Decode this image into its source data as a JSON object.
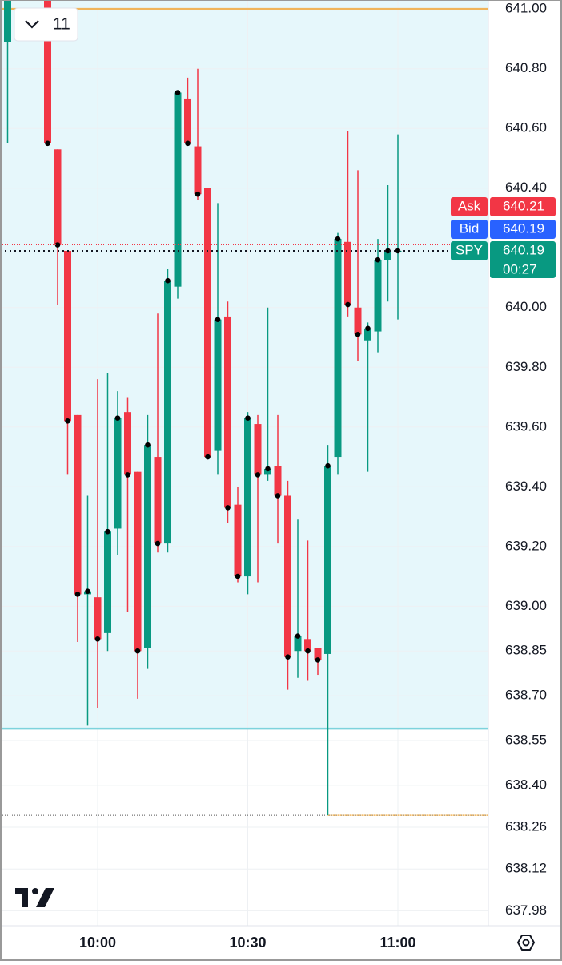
{
  "chart_data": {
    "type": "candlestick",
    "toolbar": {
      "interval": "11"
    },
    "categories": [
      null,
      null,
      null,
      null,
      null,
      null,
      null,
      null,
      null,
      "10:00",
      null,
      null,
      null,
      null,
      null,
      null,
      null,
      null,
      null,
      null,
      null,
      null,
      null,
      null,
      "10:30",
      null,
      null,
      null,
      null,
      null,
      null,
      null,
      null,
      null,
      null,
      null,
      null,
      null,
      null,
      "11:00"
    ],
    "series": {
      "open": [
        640.89,
        null,
        null,
        null,
        641.1,
        640.53,
        640.19,
        639.64,
        639.04,
        639.03,
        638.91,
        639.26,
        639.65,
        639.45,
        638.86,
        639.5,
        639.21,
        640.07,
        640.7,
        640.54,
        640.4,
        639.52,
        639.97,
        639.34,
        639.1,
        639.61,
        639.44,
        639.47,
        639.37,
        638.85,
        638.89,
        638.86,
        638.84,
        639.5,
        640.22,
        640.0,
        639.89,
        639.92,
        640.16,
        640.19
      ],
      "high": [
        641.1,
        null,
        null,
        null,
        641.15,
        640.53,
        640.19,
        639.64,
        639.37,
        639.76,
        639.78,
        639.72,
        639.7,
        639.45,
        639.64,
        639.98,
        640.13,
        640.72,
        640.77,
        640.8,
        640.4,
        640.35,
        640.02,
        639.4,
        639.65,
        639.64,
        640.0,
        639.64,
        639.42,
        639.29,
        639.22,
        638.86,
        639.54,
        640.25,
        640.59,
        640.46,
        639.95,
        640.23,
        640.41,
        640.58
      ],
      "low": [
        640.55,
        null,
        null,
        null,
        640.55,
        640.01,
        639.44,
        638.88,
        638.6,
        638.66,
        638.85,
        639.17,
        638.98,
        638.69,
        638.79,
        639.18,
        639.18,
        640.03,
        640.55,
        640.36,
        639.5,
        639.44,
        639.28,
        639.08,
        639.04,
        639.08,
        639.42,
        639.21,
        638.72,
        638.76,
        638.75,
        638.77,
        638.3,
        639.44,
        639.97,
        639.82,
        639.45,
        639.85,
        640.02,
        639.96
      ],
      "close": [
        641.05,
        null,
        null,
        null,
        640.55,
        640.21,
        639.62,
        639.04,
        639.05,
        638.89,
        639.25,
        639.63,
        639.44,
        638.85,
        639.54,
        639.21,
        640.09,
        640.72,
        640.55,
        640.38,
        639.5,
        639.96,
        639.33,
        639.1,
        639.63,
        639.44,
        639.46,
        639.37,
        638.83,
        638.9,
        638.85,
        638.82,
        639.47,
        640.23,
        640.01,
        639.91,
        639.93,
        640.16,
        640.19,
        640.19
      ]
    },
    "up_color": "#089981",
    "down_color": "#f23645",
    "ylim": [
      637.93,
      641.03
    ],
    "yticks": [
      {
        "value": 641.0,
        "label": "641.00"
      },
      {
        "value": 640.8,
        "label": "640.80"
      },
      {
        "value": 640.6,
        "label": "640.60"
      },
      {
        "value": 640.4,
        "label": "640.40"
      },
      {
        "value": 640.0,
        "label": "640.00"
      },
      {
        "value": 639.8,
        "label": "639.80"
      },
      {
        "value": 639.6,
        "label": "639.60"
      },
      {
        "value": 639.4,
        "label": "639.40"
      },
      {
        "value": 639.2,
        "label": "639.20"
      },
      {
        "value": 639.0,
        "label": "639.00"
      },
      638.85,
      {
        "value": 638.7,
        "label": "638.70"
      },
      638.55,
      {
        "value": 638.4,
        "label": "638.40"
      },
      638.26,
      638.12,
      637.98
    ],
    "grid": true,
    "zone": {
      "from": 638.59,
      "color": "#e6f7fb",
      "line_color": "#7dd3dc"
    },
    "price_lines": [
      {
        "value": 641.0,
        "color": "#f0b45a"
      },
      {
        "value": 638.3,
        "color": "#f0b45a"
      }
    ],
    "badges": [
      {
        "name": "Ask",
        "value": 640.21,
        "color": "#f23645"
      },
      {
        "name": "Bid",
        "value": 640.19,
        "color": "#2962ff"
      },
      {
        "name": "SPY",
        "value": 640.19,
        "color": "#089981",
        "countdown": "00:27"
      }
    ]
  }
}
